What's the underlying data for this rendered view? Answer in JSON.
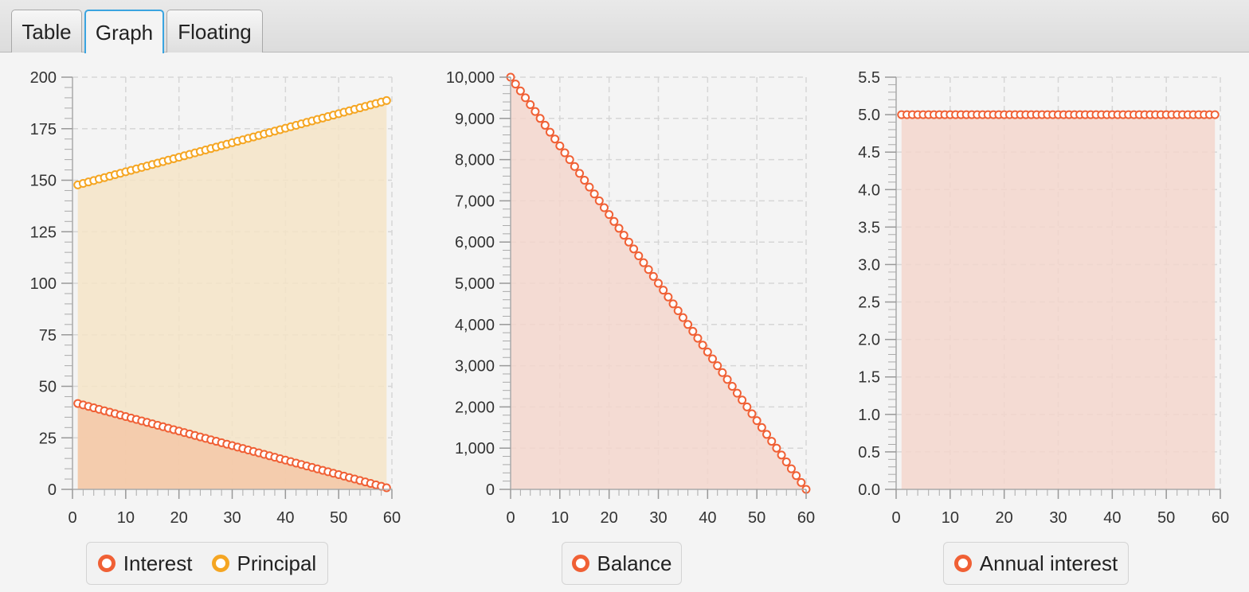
{
  "tabs": [
    {
      "label": "Table",
      "selected": false
    },
    {
      "label": "Graph",
      "selected": true
    },
    {
      "label": "Floating",
      "selected": false
    }
  ],
  "colors": {
    "interest": "#f06035",
    "principal": "#f5a623",
    "principal_fill": "#f5e4c7",
    "interest_fill": "#f3c7a7",
    "balance_fill": "#f3d6cc"
  },
  "charts": [
    {
      "legend": [
        {
          "label": "Interest",
          "color": "#f06035"
        },
        {
          "label": "Principal",
          "color": "#f5a623"
        }
      ]
    },
    {
      "legend": [
        {
          "label": "Balance",
          "color": "#f06035"
        }
      ]
    },
    {
      "legend": [
        {
          "label": "Annual interest",
          "color": "#f06035"
        }
      ]
    }
  ],
  "chart_data": [
    {
      "type": "area",
      "x_range": [
        0,
        60
      ],
      "x_ticks": [
        0,
        10,
        20,
        30,
        40,
        50,
        60
      ],
      "ylim": [
        0,
        200
      ],
      "y_ticks": [
        0,
        25,
        50,
        75,
        100,
        125,
        150,
        175,
        200
      ],
      "y_tick_labels": [
        "0",
        "25",
        "50",
        "75",
        "100",
        "125",
        "150",
        "175",
        "200"
      ],
      "grid": true,
      "legend_position": "bottom",
      "series": [
        {
          "name": "Interest",
          "x_start": 1,
          "x_end": 59,
          "y_start": 41.67,
          "y_end": 0.78,
          "points": 59
        },
        {
          "name": "Principal",
          "x_start": 1,
          "x_end": 59,
          "y_start": 147.75,
          "y_end": 188.64,
          "points": 59
        }
      ]
    },
    {
      "type": "area",
      "x_range": [
        0,
        60
      ],
      "x_ticks": [
        0,
        10,
        20,
        30,
        40,
        50,
        60
      ],
      "ylim": [
        0,
        10000
      ],
      "y_ticks": [
        0,
        1000,
        2000,
        3000,
        4000,
        5000,
        6000,
        7000,
        8000,
        9000,
        10000
      ],
      "y_tick_labels": [
        "0",
        "1,000",
        "2,000",
        "3,000",
        "4,000",
        "5,000",
        "6,000",
        "7,000",
        "8,000",
        "9,000",
        "10,000"
      ],
      "grid": true,
      "legend_position": "bottom",
      "series": [
        {
          "name": "Balance",
          "x_start": 0,
          "x_end": 60,
          "y_start": 10000,
          "y_end": 0,
          "points": 61
        }
      ]
    },
    {
      "type": "area",
      "x_range": [
        0,
        60
      ],
      "x_ticks": [
        0,
        10,
        20,
        30,
        40,
        50,
        60
      ],
      "ylim": [
        0,
        5.5
      ],
      "y_ticks": [
        0,
        0.5,
        1,
        1.5,
        2,
        2.5,
        3,
        3.5,
        4,
        4.5,
        5,
        5.5
      ],
      "y_tick_labels": [
        "0.0",
        "0.5",
        "1.0",
        "1.5",
        "2.0",
        "2.5",
        "3.0",
        "3.5",
        "4.0",
        "4.5",
        "5.0",
        "5.5"
      ],
      "grid": true,
      "legend_position": "bottom",
      "series": [
        {
          "name": "Annual interest",
          "x_start": 1,
          "x_end": 59,
          "y_start": 5.0,
          "y_end": 5.0,
          "points": 59
        }
      ]
    }
  ]
}
